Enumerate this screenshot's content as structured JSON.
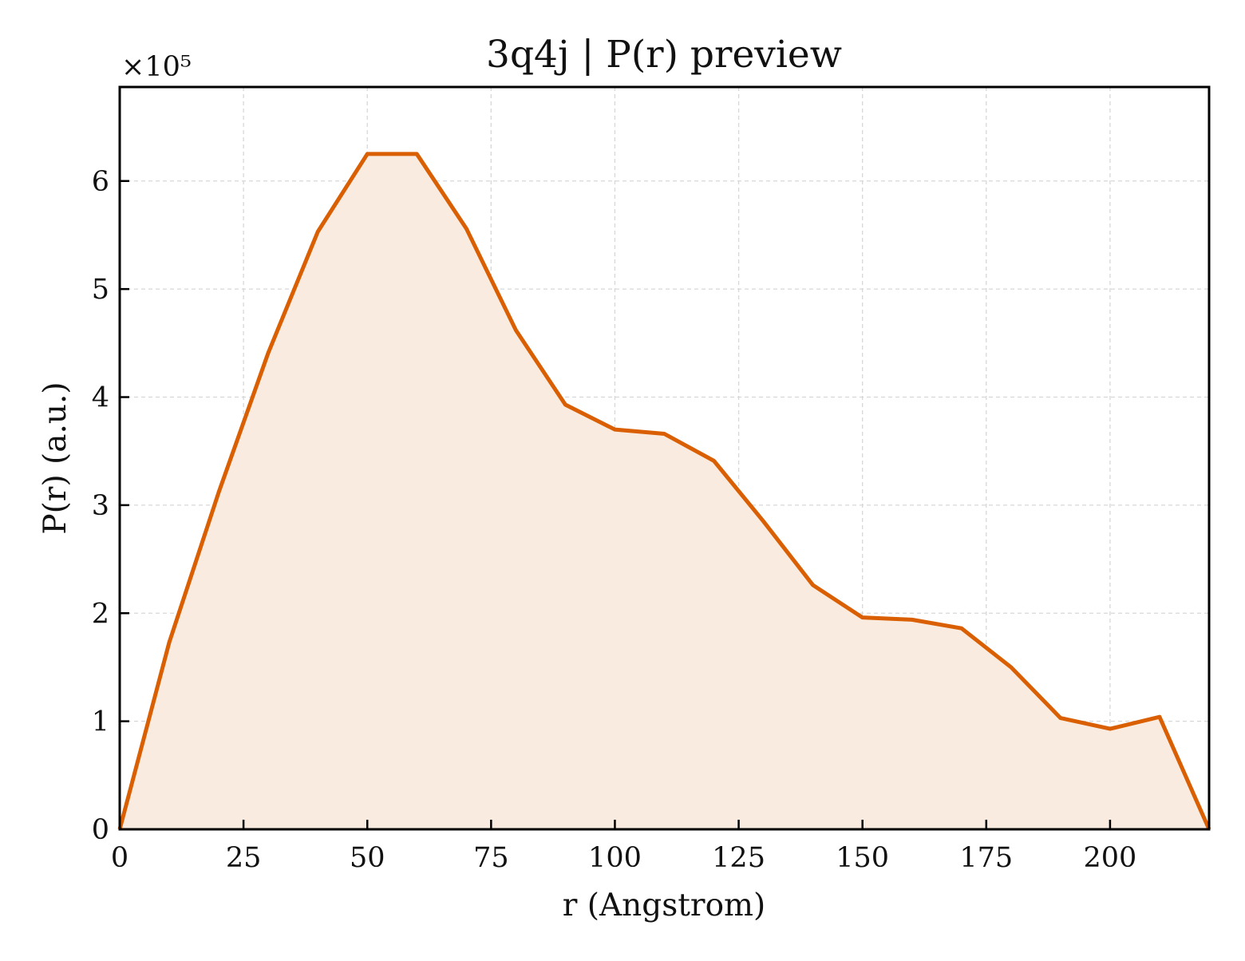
{
  "chart_data": {
    "type": "area",
    "title": "3q4j | P(r) preview",
    "xlabel": "r (Angstrom)",
    "ylabel": "P(r) (a.u.)",
    "y_multiplier_label": "×10⁵",
    "xlim": [
      0,
      220
    ],
    "ylim": [
      0,
      6.87
    ],
    "y_scale_factor": 100000,
    "xticks": [
      0,
      25,
      50,
      75,
      100,
      125,
      150,
      175,
      200
    ],
    "yticks": [
      0,
      1,
      2,
      3,
      4,
      5,
      6
    ],
    "grid": true,
    "legend": "none",
    "series": [
      {
        "color": "#d95f02",
        "fill_color": "#f9ebe0",
        "x": [
          0,
          10,
          20,
          30,
          40,
          50,
          60,
          70,
          80,
          90,
          100,
          110,
          120,
          130,
          140,
          150,
          160,
          170,
          180,
          190,
          200,
          210,
          220
        ],
        "y": [
          0,
          1.73,
          3.12,
          4.41,
          5.53,
          6.25,
          6.25,
          5.56,
          4.62,
          3.93,
          3.7,
          3.66,
          3.41,
          2.85,
          2.26,
          1.96,
          1.94,
          1.86,
          1.5,
          1.03,
          0.93,
          1.04,
          0
        ]
      }
    ]
  }
}
